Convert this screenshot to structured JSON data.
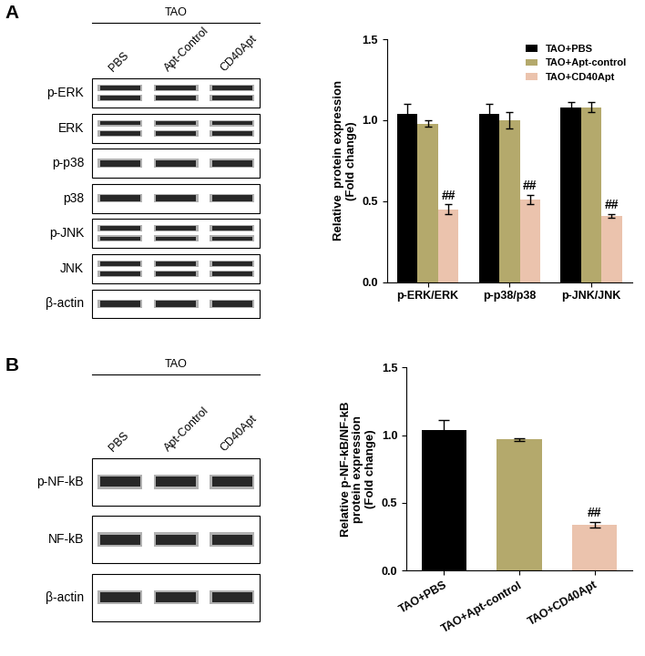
{
  "panels": [
    {
      "letter": "A",
      "blot": {
        "group": "TAO",
        "lanes": [
          "PBS",
          "Apt-Control",
          "CD40Apt"
        ],
        "rows": [
          {
            "label": "p-ERK",
            "double": true
          },
          {
            "label": "ERK",
            "double": true
          },
          {
            "label": "p-p38",
            "double": false
          },
          {
            "label": "p38",
            "double": false
          },
          {
            "label": "p-JNK",
            "double": true
          },
          {
            "label": "JNK",
            "double": true
          },
          {
            "label": "β-actin",
            "double": false
          }
        ]
      }
    },
    {
      "letter": "B",
      "blot": {
        "group": "TAO",
        "lanes": [
          "PBS",
          "Apt-Control",
          "CD40Apt"
        ],
        "rows": [
          {
            "label": "p-NF-kB",
            "double": false
          },
          {
            "label": "NF-kB",
            "double": false
          },
          {
            "label": "β-actin",
            "double": false
          }
        ]
      }
    }
  ],
  "chart_data": [
    {
      "type": "bar",
      "y_label": "Relative  protein expression\n(Fold change)",
      "categories": [
        "p-ERK/ERK",
        "p-p38/p38",
        "p-JNK/JNK"
      ],
      "series": [
        {
          "name": "TAO+PBS",
          "color": "#000000",
          "values": [
            1.04,
            1.04,
            1.08
          ],
          "errors": [
            0.06,
            0.06,
            0.03
          ]
        },
        {
          "name": "TAO+Apt-control",
          "color": "#b4a96c",
          "values": [
            0.98,
            1.0,
            1.08
          ],
          "errors": [
            0.02,
            0.05,
            0.03
          ]
        },
        {
          "name": "TAO+CD40Apt",
          "color": "#ebc3ad",
          "values": [
            0.45,
            0.51,
            0.41
          ],
          "errors": [
            0.03,
            0.03,
            0.01
          ],
          "significance": [
            "##",
            "##",
            "##"
          ]
        }
      ],
      "ylim": [
        0,
        1.5
      ],
      "yticks": [
        {
          "value": 0,
          "label": "0.0"
        },
        0.5,
        {
          "value": 1,
          "label": "1.0"
        },
        1.5
      ],
      "legend": "upper right",
      "grid": false
    },
    {
      "type": "bar",
      "y_label": "Relative p-NF-kB/NF-kB\nprotein expression\n(Fold change)",
      "categories": [
        "TAO+PBS",
        "TAO+Apt-control",
        "TAO+CD40Apt"
      ],
      "values": [
        1.04,
        0.97,
        0.34
      ],
      "errors": [
        0.07,
        0.01,
        0.02
      ],
      "significance": [
        null,
        null,
        "##"
      ],
      "colors": [
        "#000000",
        "#b4a96c",
        "#ebc3ad"
      ],
      "ylim": [
        0,
        1.5
      ],
      "yticks": [
        {
          "value": 0,
          "label": "0.0"
        },
        0.5,
        {
          "value": 1,
          "label": "1.0"
        },
        1.5
      ],
      "grid": false
    }
  ]
}
